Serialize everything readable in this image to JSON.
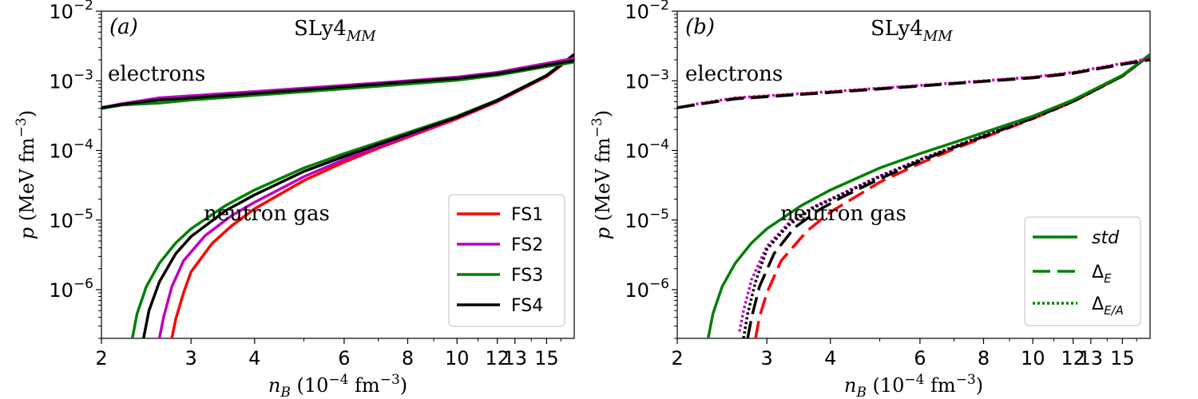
{
  "chart_data": [
    {
      "type": "line",
      "panel_tag": "(a)",
      "model_main": "SLy4",
      "model_sub": "MM",
      "xlabel_main": "n",
      "xlabel_sub": "B",
      "xlabel_mid": " (10",
      "xlabel_exp": "−4",
      "xlabel_tail": " fm",
      "xlabel_exp2": "−3",
      "xlabel_close": ")",
      "ylabel_main": "p",
      "ylabel_mid": " (MeV  fm",
      "ylabel_exp": "−3",
      "ylabel_close": ")",
      "xscale": "log",
      "yscale": "log",
      "xlim": [
        2,
        17
      ],
      "ylim": [
        2e-07,
        0.01
      ],
      "x_ticks": [
        {
          "value": 2,
          "label": "2"
        },
        {
          "value": 3,
          "label": "3"
        },
        {
          "value": 4,
          "label": "4"
        },
        {
          "value": 6,
          "label": "6"
        },
        {
          "value": 8,
          "label": "8"
        },
        {
          "value": 10,
          "label": "10"
        },
        {
          "value": 12,
          "label": "12"
        },
        {
          "value": 13,
          "label": "13"
        },
        {
          "value": 15,
          "label": "15"
        }
      ],
      "y_ticks": [
        {
          "value": 0.01,
          "base": "10",
          "exp": "−2"
        },
        {
          "value": 0.001,
          "base": "10",
          "exp": "−3"
        },
        {
          "value": 0.0001,
          "base": "10",
          "exp": "−4"
        },
        {
          "value": 1e-05,
          "base": "10",
          "exp": "−5"
        },
        {
          "value": 1e-06,
          "base": "10",
          "exp": "−6"
        }
      ],
      "annotations": {
        "electrons": "electrons",
        "neutron_gas": "neutron gas"
      },
      "legend_position": "lower-right",
      "series": [
        {
          "name": "FS1",
          "color": "#ff0000",
          "style": "solid",
          "group": "neutron gas",
          "x": [
            2.75,
            2.8,
            2.9,
            3.0,
            3.3,
            3.6,
            4.0,
            5.0,
            6.0,
            7.0,
            8.0,
            10.0,
            12.0,
            15.0,
            17.0
          ],
          "y": [
            2e-07,
            3.8e-07,
            9e-07,
            1.8e-06,
            4.6e-06,
            8.2e-06,
            1.45e-05,
            3.7e-05,
            6.8e-05,
            0.000107,
            0.000155,
            0.000285,
            0.0005,
            0.00115,
            0.0023
          ]
        },
        {
          "name": "FS2",
          "color": "#bf00bf",
          "style": "solid",
          "group": "neutron gas",
          "x": [
            2.6,
            2.65,
            2.75,
            2.9,
            3.2,
            3.6,
            4.0,
            5.0,
            6.0,
            7.0,
            8.0,
            10.0,
            12.0,
            15.0,
            17.0
          ],
          "y": [
            2e-07,
            4e-07,
            1.1e-06,
            2.6e-06,
            6e-06,
            1.15e-05,
            1.8e-05,
            4.2e-05,
            7.4e-05,
            0.000113,
            0.000162,
            0.000295,
            0.00051,
            0.00118,
            0.00235
          ]
        },
        {
          "name": "FS3",
          "color": "#008000",
          "style": "solid",
          "group": "neutron gas",
          "x": [
            2.3,
            2.35,
            2.45,
            2.6,
            2.8,
            3.0,
            3.5,
            4.0,
            5.0,
            6.0,
            7.0,
            8.0,
            10.0,
            12.0,
            15.0,
            17.0
          ],
          "y": [
            2e-07,
            4.5e-07,
            1.1e-06,
            2.4e-06,
            4.7e-06,
            7.5e-06,
            1.6e-05,
            2.7e-05,
            5.6e-05,
            9e-05,
            0.00013,
            0.00018,
            0.00031,
            0.00053,
            0.0012,
            0.0024
          ]
        },
        {
          "name": "FS4",
          "color": "#000000",
          "style": "solid",
          "group": "neutron gas",
          "x": [
            2.42,
            2.48,
            2.6,
            2.8,
            3.0,
            3.5,
            4.0,
            5.0,
            6.0,
            7.0,
            8.0,
            10.0,
            12.0,
            15.0,
            17.0
          ],
          "y": [
            2e-07,
            5e-07,
            1.3e-06,
            3.3e-06,
            5.8e-06,
            1.35e-05,
            2.3e-05,
            5e-05,
            8.2e-05,
            0.000122,
            0.00017,
            0.0003,
            0.00052,
            0.00119,
            0.0024
          ]
        },
        {
          "name": "FS1",
          "color": "#ff0000",
          "style": "solid",
          "group": "electrons",
          "legend": false,
          "x": [
            2.0,
            2.2,
            2.6,
            3.0,
            4.0,
            6.0,
            8.0,
            10.0,
            12.0,
            15.0,
            17.0
          ],
          "y": [
            0.00041,
            0.00046,
            0.00056,
            0.0006,
            0.00069,
            0.00085,
            0.00099,
            0.00112,
            0.0013,
            0.00175,
            0.00205
          ]
        },
        {
          "name": "FS2",
          "color": "#bf00bf",
          "style": "solid",
          "group": "electrons",
          "legend": false,
          "x": [
            2.0,
            2.2,
            2.6,
            3.0,
            4.0,
            6.0,
            8.0,
            10.0,
            12.0,
            15.0,
            17.0
          ],
          "y": [
            0.00041,
            0.00047,
            0.00057,
            0.00061,
            0.0007,
            0.00086,
            0.001,
            0.00113,
            0.00132,
            0.00178,
            0.0021
          ]
        },
        {
          "name": "FS3",
          "color": "#008000",
          "style": "solid",
          "group": "electrons",
          "legend": false,
          "x": [
            2.0,
            2.2,
            2.6,
            3.0,
            4.0,
            6.0,
            8.0,
            10.0,
            12.0,
            15.0,
            17.0
          ],
          "y": [
            0.0004,
            0.00045,
            0.00048,
            0.00053,
            0.00062,
            0.00077,
            0.0009,
            0.00102,
            0.0012,
            0.0016,
            0.00185
          ]
        },
        {
          "name": "FS4",
          "color": "#000000",
          "style": "solid",
          "group": "electrons",
          "legend": false,
          "x": [
            2.0,
            2.2,
            2.6,
            3.0,
            4.0,
            6.0,
            8.0,
            10.0,
            12.0,
            15.0,
            17.0
          ],
          "y": [
            0.00041,
            0.00046,
            0.00053,
            0.00057,
            0.00066,
            0.00082,
            0.00096,
            0.00108,
            0.00126,
            0.00168,
            0.00195
          ]
        }
      ],
      "legend": [
        {
          "label": "FS1",
          "color": "#ff0000",
          "style": "solid"
        },
        {
          "label": "FS2",
          "color": "#bf00bf",
          "style": "solid"
        },
        {
          "label": "FS3",
          "color": "#008000",
          "style": "solid"
        },
        {
          "label": "FS4",
          "color": "#000000",
          "style": "solid"
        }
      ]
    },
    {
      "type": "line",
      "panel_tag": "(b)",
      "model_main": "SLy4",
      "model_sub": "MM",
      "xlabel_main": "n",
      "xlabel_sub": "B",
      "xlabel_mid": " (10",
      "xlabel_exp": "−4",
      "xlabel_tail": " fm",
      "xlabel_exp2": "−3",
      "xlabel_close": ")",
      "ylabel_main": "p",
      "ylabel_mid": " (MeV fm",
      "ylabel_exp": "−3",
      "ylabel_close": ")",
      "xscale": "log",
      "yscale": "log",
      "xlim": [
        2,
        17
      ],
      "ylim": [
        2e-07,
        0.01
      ],
      "x_ticks": [
        {
          "value": 2,
          "label": "2"
        },
        {
          "value": 3,
          "label": "3"
        },
        {
          "value": 4,
          "label": "4"
        },
        {
          "value": 6,
          "label": "6"
        },
        {
          "value": 8,
          "label": "8"
        },
        {
          "value": 10,
          "label": "10"
        },
        {
          "value": 12,
          "label": "12"
        },
        {
          "value": 13,
          "label": "13"
        },
        {
          "value": 15,
          "label": "15"
        }
      ],
      "y_ticks": [
        {
          "value": 0.01,
          "base": "10",
          "exp": "−2"
        },
        {
          "value": 0.001,
          "base": "10",
          "exp": "−3"
        },
        {
          "value": 0.0001,
          "base": "10",
          "exp": "−4"
        },
        {
          "value": 1e-05,
          "base": "10",
          "exp": "−5"
        },
        {
          "value": 1e-06,
          "base": "10",
          "exp": "−6"
        }
      ],
      "annotations": {
        "electrons": "electrons",
        "neutron_gas": "neutron gas"
      },
      "legend_position": "lower-right",
      "series": [
        {
          "name": "FS1 Δ_E",
          "color": "#ff0000",
          "style": "dashed",
          "group": "neutron gas",
          "x": [
            2.85,
            2.9,
            3.0,
            3.2,
            3.6,
            4.0,
            5.0,
            6.0,
            7.0,
            8.0,
            10.0,
            12.0,
            15.0,
            17.0
          ],
          "y": [
            2e-07,
            4e-07,
            9e-07,
            2.6e-06,
            7e-06,
            1.3e-05,
            3.5e-05,
            6.5e-05,
            0.000105,
            0.000152,
            0.000285,
            0.0005,
            0.00117,
            0.00235
          ]
        },
        {
          "name": "FS2 Δ_E/A",
          "color": "#bf00bf",
          "style": "dotted",
          "group": "neutron gas",
          "x": [
            2.65,
            2.7,
            2.8,
            3.0,
            3.3,
            3.7,
            4.0,
            5.0,
            6.0,
            7.0,
            8.0,
            10.0,
            12.0,
            15.0,
            17.0
          ],
          "y": [
            2.5e-07,
            5e-07,
            1.4e-06,
            4.2e-06,
            8.8e-06,
            1.55e-05,
            2e-05,
            4.3e-05,
            7.4e-05,
            0.000114,
            0.000163,
            0.000295,
            0.00051,
            0.00118,
            0.00237
          ]
        },
        {
          "name": "FS4 Δ_E",
          "color": "#000000",
          "style": "dashed",
          "group": "neutron gas",
          "x": [
            2.75,
            2.8,
            2.9,
            3.1,
            3.4,
            3.8,
            4.2,
            5.0,
            6.0,
            7.0,
            8.0,
            10.0,
            12.0,
            15.0,
            17.0
          ],
          "y": [
            2e-07,
            4e-07,
            1.1e-06,
            3.3e-06,
            7.8e-06,
            1.4e-05,
            2.1e-05,
            3.9e-05,
            7e-05,
            0.00011,
            0.000158,
            0.00029,
            0.000505,
            0.00117,
            0.00236
          ]
        },
        {
          "name": "FS4 Δ_E/A",
          "color": "#000000",
          "style": "dotted",
          "group": "neutron gas",
          "x": [
            2.7,
            2.75,
            2.85,
            3.0,
            3.3,
            3.7,
            4.0,
            5.0,
            6.0,
            7.0,
            8.0,
            10.0,
            12.0,
            15.0,
            17.0
          ],
          "y": [
            2e-07,
            4.5e-07,
            1.3e-06,
            3.8e-06,
            8.3e-06,
            1.5e-05,
            1.95e-05,
            4.2e-05,
            7.3e-05,
            0.000113,
            0.000162,
            0.000295,
            0.00051,
            0.00118,
            0.00237
          ]
        },
        {
          "name": "FS3 std",
          "color": "#008000",
          "style": "solid",
          "group": "neutron gas",
          "x": [
            2.3,
            2.35,
            2.45,
            2.6,
            2.8,
            3.0,
            3.5,
            4.0,
            5.0,
            6.0,
            7.0,
            8.0,
            10.0,
            12.0,
            15.0,
            17.0
          ],
          "y": [
            2e-07,
            4.5e-07,
            1.1e-06,
            2.4e-06,
            4.7e-06,
            7.5e-06,
            1.6e-05,
            2.7e-05,
            5.6e-05,
            9e-05,
            0.00013,
            0.00018,
            0.00031,
            0.00053,
            0.0012,
            0.0024
          ]
        },
        {
          "name": "FS1 Δ_E",
          "color": "#ff0000",
          "style": "dashed",
          "group": "electrons",
          "x": [
            2.0,
            2.2,
            2.6,
            3.0,
            4.0,
            6.0,
            8.0,
            10.0,
            12.0,
            15.0,
            17.0
          ],
          "y": [
            0.00041,
            0.00046,
            0.00056,
            0.0006,
            0.00069,
            0.00085,
            0.00099,
            0.00112,
            0.0013,
            0.00175,
            0.00205
          ]
        },
        {
          "name": "FS2 Δ_E/A",
          "color": "#bf00bf",
          "style": "dotted",
          "group": "electrons",
          "x": [
            2.0,
            2.2,
            2.6,
            3.0,
            4.0,
            6.0,
            8.0,
            10.0,
            12.0,
            15.0,
            17.0
          ],
          "y": [
            0.00041,
            0.00047,
            0.00057,
            0.00061,
            0.0007,
            0.00086,
            0.001,
            0.00113,
            0.00132,
            0.00178,
            0.0021
          ]
        },
        {
          "name": "FS4 Δ_E",
          "color": "#000000",
          "style": "dashed",
          "group": "electrons",
          "x": [
            2.0,
            2.2,
            2.6,
            3.0,
            4.0,
            6.0,
            8.0,
            10.0,
            12.0,
            15.0,
            17.0
          ],
          "y": [
            0.00041,
            0.00046,
            0.00055,
            0.00059,
            0.00068,
            0.00084,
            0.00098,
            0.0011,
            0.00128,
            0.00172,
            0.002
          ]
        }
      ],
      "legend": [
        {
          "label": "std",
          "color": "#008000",
          "style": "solid",
          "italic": true,
          "sub": ""
        },
        {
          "label": "Δ",
          "color": "#008000",
          "style": "dashed",
          "italic": false,
          "sub": "E"
        },
        {
          "label": "Δ",
          "color": "#008000",
          "style": "dotted",
          "italic": false,
          "sub": "E/A"
        }
      ]
    }
  ]
}
